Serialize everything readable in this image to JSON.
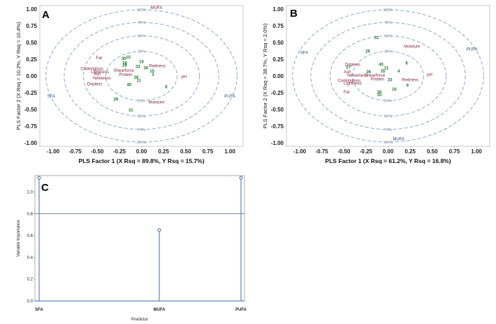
{
  "chart_data": [
    {
      "type": "scatter",
      "panel": "A",
      "xlabel": "PLS Factor 1 (X Rsq = 89.8%, Y Rsq = 15.7%)",
      "ylabel": "PLS Factor 2 (X Rsq = 10.2%, Y Rsq = 10.4%)",
      "xlim": [
        -1.15,
        1.15
      ],
      "ylim": [
        -1.05,
        1.05
      ],
      "xticks": [
        "-1.00",
        "-0.75",
        "-0.50",
        "-0.25",
        "0.00",
        "0.25",
        "0.50",
        "0.75",
        "1.00"
      ],
      "yticks": [
        "1.00",
        "0.75",
        "0.50",
        "0.25",
        "0.00",
        "-0.25",
        "-0.50",
        "-0.75",
        "-1.00"
      ],
      "circle_labels": [
        "100%",
        "75%",
        "50%",
        "25%",
        "25%",
        "50%",
        "75%",
        "100%"
      ],
      "variables_x": [
        {
          "label": "MUFA",
          "x": 0.17,
          "y": 1.0
        },
        {
          "label": "SFA",
          "x": -1.02,
          "y": -0.32
        },
        {
          "label": "PUFA",
          "x": 1.0,
          "y": -0.32
        }
      ],
      "responses": [
        {
          "label": "Fat",
          "x": -0.48,
          "y": 0.25
        },
        {
          "label": "Cookingloss",
          "x": -0.56,
          "y": 0.09
        },
        {
          "label": "Shearforce",
          "x": -0.2,
          "y": 0.06
        },
        {
          "label": "Ash",
          "x": -0.5,
          "y": 0.01
        },
        {
          "label": "Protein",
          "x": -0.18,
          "y": 0.0
        },
        {
          "label": "Lightness",
          "x": -0.47,
          "y": 0.04
        },
        {
          "label": "Yellowess",
          "x": -0.45,
          "y": -0.05
        },
        {
          "label": "Dripless",
          "x": -0.53,
          "y": -0.14
        },
        {
          "label": "Redness",
          "x": 0.18,
          "y": 0.13
        },
        {
          "label": "pH",
          "x": 0.48,
          "y": -0.03
        },
        {
          "label": "Moisture",
          "x": 0.17,
          "y": -0.41
        }
      ],
      "observations": [
        {
          "label": "10",
          "x": -0.15,
          "y": 0.26
        },
        {
          "label": "30",
          "x": -0.2,
          "y": 0.24
        },
        {
          "label": "16",
          "x": 0.0,
          "y": 0.19
        },
        {
          "label": "26",
          "x": -0.19,
          "y": 0.17
        },
        {
          "label": "28",
          "x": -0.19,
          "y": 0.14
        },
        {
          "label": "33",
          "x": -0.04,
          "y": 0.12
        },
        {
          "label": "36",
          "x": 0.05,
          "y": 0.1
        },
        {
          "label": "15",
          "x": 0.12,
          "y": 0.05
        },
        {
          "label": "3",
          "x": 0.13,
          "y": 0.0
        },
        {
          "label": "39",
          "x": -0.06,
          "y": -0.04
        },
        {
          "label": "11",
          "x": -0.03,
          "y": -0.09
        },
        {
          "label": "40",
          "x": -0.14,
          "y": -0.15
        },
        {
          "label": "8",
          "x": 0.28,
          "y": -0.18
        },
        {
          "label": "29",
          "x": -0.29,
          "y": -0.37
        },
        {
          "label": "31",
          "x": -0.12,
          "y": -0.53
        }
      ]
    },
    {
      "type": "scatter",
      "panel": "B",
      "xlabel": "PLS Factor 1 (X Rsq = 61.2%, Y Rsq = 16.8%)",
      "ylabel": "PLS Factor 2 (X Rsq = 38.7%, Y Rsq = 2.0%)",
      "xlim": [
        -1.15,
        1.15
      ],
      "ylim": [
        -1.05,
        1.05
      ],
      "xticks": [
        "-1.00",
        "-0.75",
        "-0.50",
        "-0.25",
        "0.00",
        "0.25",
        "0.50",
        "0.75",
        "1.00"
      ],
      "yticks": [
        "1.00",
        "0.75",
        "0.50",
        "0.25",
        "0.00",
        "-0.25",
        "-0.50",
        "-0.75",
        "-1.00"
      ],
      "circle_labels": [
        "100%",
        "75%",
        "50%",
        "25%",
        "25%",
        "50%",
        "75%",
        "100%"
      ],
      "variables_x": [
        {
          "label": "SFA",
          "x": -0.95,
          "y": 0.33
        },
        {
          "label": "PUFA",
          "x": 0.95,
          "y": 0.38
        },
        {
          "label": "MUFA",
          "x": 0.12,
          "y": -0.96
        }
      ],
      "responses": [
        {
          "label": "Dripless",
          "x": -0.4,
          "y": 0.15
        },
        {
          "label": "Moisture",
          "x": 0.27,
          "y": 0.42
        },
        {
          "label": "Ash",
          "x": -0.46,
          "y": 0.04
        },
        {
          "label": "Yellowness",
          "x": -0.35,
          "y": -0.01
        },
        {
          "label": "Shearforce",
          "x": -0.15,
          "y": -0.01
        },
        {
          "label": "Protein",
          "x": -0.12,
          "y": -0.07
        },
        {
          "label": "Cookingloss",
          "x": -0.44,
          "y": -0.09
        },
        {
          "label": "Lightness",
          "x": -0.4,
          "y": -0.13
        },
        {
          "label": "Fat",
          "x": -0.47,
          "y": -0.26
        },
        {
          "label": "Redness",
          "x": 0.25,
          "y": -0.08
        },
        {
          "label": "pH",
          "x": 0.47,
          "y": 0.0
        }
      ],
      "observations": [
        {
          "label": "31",
          "x": -0.13,
          "y": 0.55
        },
        {
          "label": "29",
          "x": -0.23,
          "y": 0.35
        },
        {
          "label": "27",
          "x": -0.45,
          "y": 0.11
        },
        {
          "label": "40",
          "x": -0.08,
          "y": 0.15
        },
        {
          "label": "36",
          "x": -0.22,
          "y": 0.04
        },
        {
          "label": "35",
          "x": -0.06,
          "y": 0.05
        },
        {
          "label": "11",
          "x": -0.02,
          "y": 0.1
        },
        {
          "label": "8",
          "x": 0.21,
          "y": 0.17
        },
        {
          "label": "4",
          "x": 0.12,
          "y": 0.05
        },
        {
          "label": "33",
          "x": 0.02,
          "y": -0.08
        },
        {
          "label": "30",
          "x": -0.1,
          "y": -0.26
        },
        {
          "label": "10",
          "x": -0.1,
          "y": -0.3
        },
        {
          "label": "16",
          "x": 0.07,
          "y": -0.22
        },
        {
          "label": "9",
          "x": 0.22,
          "y": -0.16
        }
      ]
    },
    {
      "type": "bar",
      "panel": "C",
      "style": "needle",
      "categories": [
        "SFA",
        "MUFA",
        "PUFA"
      ],
      "values": [
        1.13,
        0.65,
        1.13
      ],
      "reference_line": 0.8,
      "xlabel": "Predictor",
      "ylabel": "Variable Importance",
      "ylim": [
        0,
        1.15
      ],
      "yticks": [
        "0.0",
        "0.2",
        "0.4",
        "0.6",
        "0.8",
        "1.0"
      ]
    }
  ]
}
